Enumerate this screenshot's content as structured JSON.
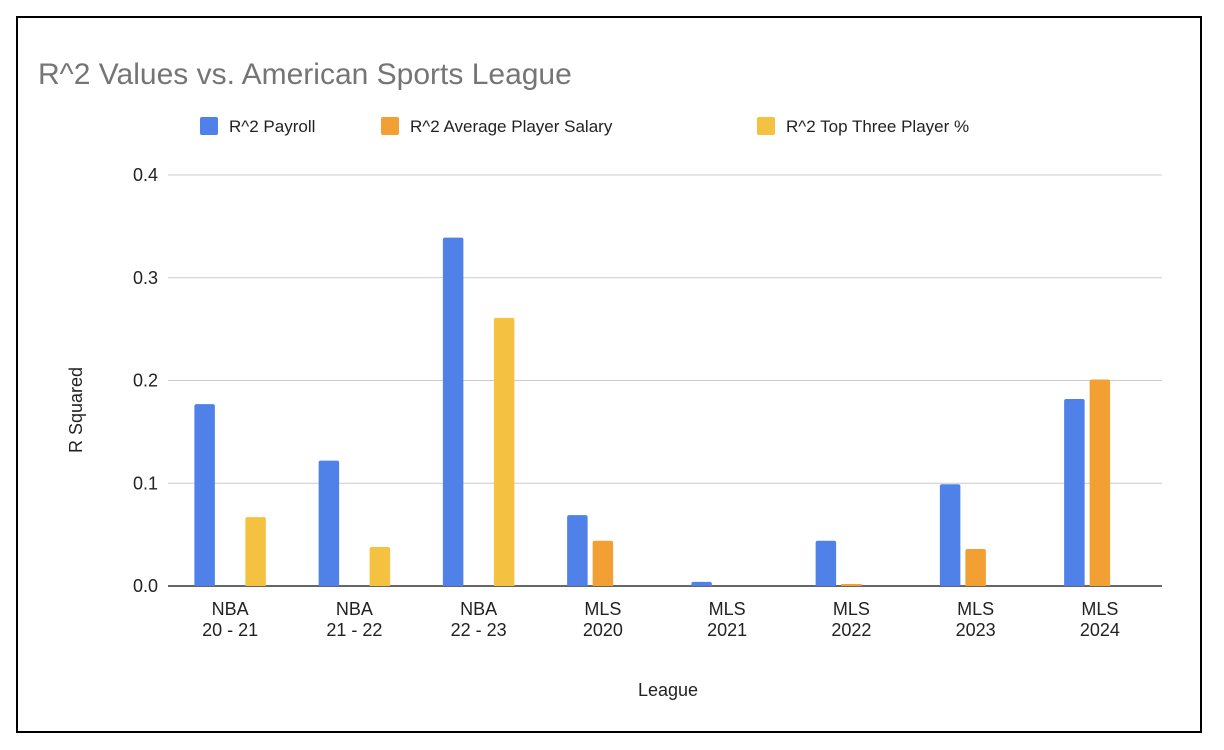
{
  "chart_data": {
    "type": "bar",
    "title": "R^2 Values vs. American Sports League",
    "xlabel": "League",
    "ylabel": "R Squared",
    "ylim": [
      0,
      0.4
    ],
    "yticks": [
      "0.0",
      "0.1",
      "0.2",
      "0.3",
      "0.4"
    ],
    "grid": true,
    "legend_position": "top",
    "categories": [
      [
        "NBA",
        "20 - 21"
      ],
      [
        "NBA",
        "21 - 22"
      ],
      [
        "NBA",
        "22 - 23"
      ],
      [
        "MLS",
        "2020"
      ],
      [
        "MLS",
        "2021"
      ],
      [
        "MLS",
        "2022"
      ],
      [
        "MLS",
        "2023"
      ],
      [
        "MLS",
        "2024"
      ]
    ],
    "series": [
      {
        "name": "R^2 Payroll",
        "color": "#4f81e8",
        "values": [
          0.177,
          0.122,
          0.339,
          0.069,
          0.004,
          0.044,
          0.099,
          0.182
        ]
      },
      {
        "name": "R^2 Average Player Salary",
        "color": "#f2a033",
        "values": [
          null,
          null,
          null,
          0.044,
          null,
          0.002,
          0.036,
          0.201
        ]
      },
      {
        "name": "R^2 Top Three Player %",
        "color": "#f4c240",
        "values": [
          0.067,
          0.038,
          0.261,
          null,
          null,
          null,
          null,
          null
        ]
      }
    ]
  }
}
